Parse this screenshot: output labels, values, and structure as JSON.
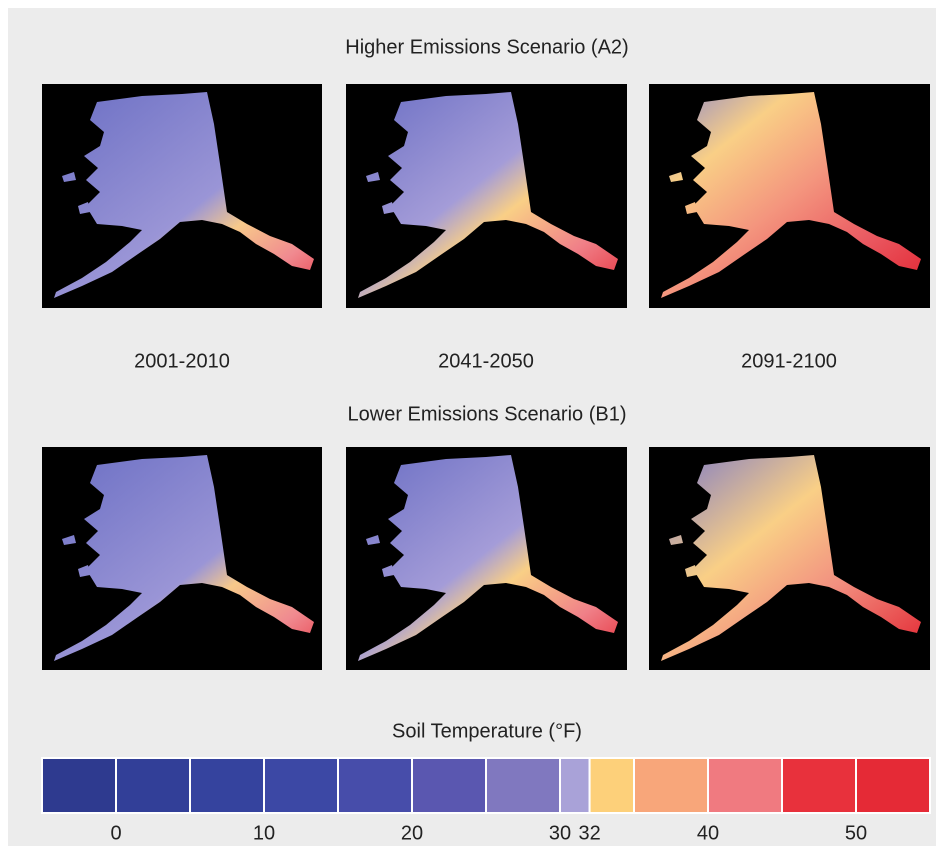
{
  "titles": {
    "higher": "Higher Emissions Scenario (A2)",
    "lower": "Lower Emissions Scenario (B1)"
  },
  "periods": [
    "2001-2010",
    "2041-2050",
    "2091-2100"
  ],
  "legend": {
    "title": "Soil Temperature (°F)",
    "bins": [
      -5,
      0,
      5,
      10,
      15,
      20,
      25,
      30,
      32,
      35,
      40,
      45,
      50,
      55
    ],
    "colors": [
      "#2e3a8f",
      "#323f98",
      "#35439e",
      "#3c48a5",
      "#474daa",
      "#5a57b0",
      "#8078bf",
      "#a9a2d8",
      "#fdd07a",
      "#f8a67a",
      "#f07a80",
      "#e8313c",
      "#e52a36"
    ],
    "ticks": [
      0,
      10,
      20,
      30,
      32,
      40,
      50
    ]
  }
}
